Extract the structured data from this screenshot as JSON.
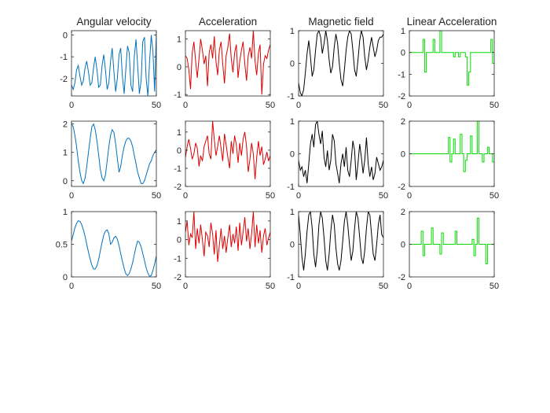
{
  "figure": {
    "rows": 3,
    "cols": 4,
    "background": "#ffffff",
    "axis_color": "#262626"
  },
  "chart_data": [
    {
      "type": "line",
      "row": 0,
      "col": 0,
      "title": "Angular velocity",
      "color": "#0072bd",
      "xlim": [
        0,
        50
      ],
      "ylim": [
        -2.8,
        0.2
      ],
      "xticks": [
        0,
        50
      ],
      "yticks": [
        0,
        -1,
        -2
      ],
      "x": [
        0,
        1,
        2,
        3,
        4,
        5,
        6,
        7,
        8,
        9,
        10,
        11,
        12,
        13,
        14,
        15,
        16,
        17,
        18,
        19,
        20,
        21,
        22,
        23,
        24,
        25,
        26,
        27,
        28,
        29,
        30,
        31,
        32,
        33,
        34,
        35,
        36,
        37,
        38,
        39,
        40,
        41,
        42,
        43,
        44,
        45,
        46,
        47,
        48,
        49,
        50
      ],
      "values": [
        -2.3,
        -2.5,
        -2.2,
        -1.6,
        -1.4,
        -1.9,
        -2.3,
        -2.1,
        -1.5,
        -1.2,
        -1.7,
        -2.3,
        -2.2,
        -1.5,
        -1.0,
        -1.6,
        -2.4,
        -2.3,
        -1.4,
        -0.9,
        -1.6,
        -2.5,
        -2.2,
        -1.2,
        -0.6,
        -1.7,
        -2.6,
        -2.0,
        -0.9,
        -0.6,
        -1.9,
        -2.7,
        -1.6,
        -0.5,
        -0.8,
        -2.3,
        -2.6,
        -1.0,
        -0.2,
        -1.4,
        -2.7,
        -2.1,
        -0.3,
        -0.1,
        -2.0,
        -2.8,
        -1.2,
        0.0,
        -0.8,
        -2.6,
        0.1
      ]
    },
    {
      "type": "line",
      "row": 0,
      "col": 1,
      "title": "Acceleration",
      "color": "#dd0000",
      "xlim": [
        0,
        50
      ],
      "ylim": [
        -1.05,
        1.3
      ],
      "xticks": [
        0,
        50
      ],
      "yticks": [
        1,
        0,
        -1
      ],
      "x": [
        0,
        1,
        2,
        3,
        4,
        5,
        6,
        7,
        8,
        9,
        10,
        11,
        12,
        13,
        14,
        15,
        16,
        17,
        18,
        19,
        20,
        21,
        22,
        23,
        24,
        25,
        26,
        27,
        28,
        29,
        30,
        31,
        32,
        33,
        34,
        35,
        36,
        37,
        38,
        39,
        40,
        41,
        42,
        43,
        44,
        45,
        46,
        47,
        48,
        49,
        50
      ],
      "values": [
        0.4,
        0.3,
        -0.1,
        -0.8,
        0.5,
        0.9,
        0.2,
        -0.4,
        0.3,
        1.0,
        0.6,
        0.1,
        0.4,
        -0.7,
        0.5,
        0.8,
        0.3,
        1.1,
        0.2,
        -0.3,
        0.6,
        0.9,
        0.1,
        -0.6,
        0.4,
        0.7,
        1.2,
        0.3,
        -0.2,
        0.5,
        0.8,
        -0.4,
        0.2,
        0.6,
        0.9,
        0.1,
        -0.5,
        0.4,
        0.7,
        0.3,
        1.3,
        0.2,
        -0.3,
        0.5,
        0.8,
        -1.0,
        0.1,
        0.4,
        0.3,
        0.6,
        0.8
      ]
    },
    {
      "type": "line",
      "row": 0,
      "col": 2,
      "title": "Magnetic field",
      "color": "#000000",
      "xlim": [
        0,
        50
      ],
      "ylim": [
        -1,
        1
      ],
      "xticks": [
        0,
        50
      ],
      "yticks": [
        1,
        0,
        -1
      ],
      "x": [
        0,
        1,
        2,
        3,
        4,
        5,
        6,
        7,
        8,
        9,
        10,
        11,
        12,
        13,
        14,
        15,
        16,
        17,
        18,
        19,
        20,
        21,
        22,
        23,
        24,
        25,
        26,
        27,
        28,
        29,
        30,
        31,
        32,
        33,
        34,
        35,
        36,
        37,
        38,
        39,
        40,
        41,
        42,
        43,
        44,
        45,
        46,
        47,
        48,
        49,
        50
      ],
      "values": [
        -0.6,
        -0.9,
        -1.0,
        -0.8,
        -0.3,
        0.3,
        0.7,
        0.2,
        -0.4,
        -0.2,
        0.4,
        0.9,
        1.0,
        0.8,
        0.3,
        0.6,
        1.0,
        0.7,
        0.1,
        -0.3,
        -0.1,
        0.5,
        0.9,
        0.6,
        0.0,
        -0.5,
        -0.7,
        -0.2,
        0.4,
        0.8,
        1.0,
        0.9,
        0.4,
        -0.2,
        -0.4,
        0.1,
        0.7,
        1.0,
        0.8,
        0.2,
        -0.2,
        0.1,
        0.5,
        0.8,
        0.5,
        0.2,
        0.4,
        0.7,
        0.8,
        0.8,
        0.9
      ]
    },
    {
      "type": "line",
      "row": 0,
      "col": 3,
      "title": "Linear Acceleration",
      "color": "#00dd00",
      "step": true,
      "xlim": [
        0,
        50
      ],
      "ylim": [
        -2,
        1
      ],
      "xticks": [
        0,
        50
      ],
      "yticks": [
        1,
        0,
        -1,
        -2
      ],
      "x": [
        0,
        1,
        2,
        3,
        4,
        5,
        6,
        7,
        8,
        9,
        10,
        11,
        12,
        13,
        14,
        15,
        16,
        17,
        18,
        19,
        20,
        21,
        22,
        23,
        24,
        25,
        26,
        27,
        28,
        29,
        30,
        31,
        32,
        33,
        34,
        35,
        36,
        37,
        38,
        39,
        40,
        41,
        42,
        43,
        44,
        45,
        46,
        47,
        48,
        49,
        50
      ],
      "values": [
        0,
        0,
        0,
        0,
        0,
        0,
        0,
        0,
        0.6,
        -0.9,
        0,
        0,
        0,
        0,
        0.6,
        0,
        0,
        0,
        1,
        0,
        0,
        0,
        0,
        0,
        0,
        0,
        -0.2,
        0,
        0,
        -0.2,
        0,
        0,
        0,
        -0.2,
        -1.5,
        -0.9,
        0,
        0,
        0,
        0,
        0,
        0,
        0,
        0,
        0,
        0,
        0,
        0,
        0.6,
        -0.5,
        0
      ]
    },
    {
      "type": "line",
      "row": 1,
      "col": 0,
      "title": "",
      "color": "#0072bd",
      "xlim": [
        0,
        50
      ],
      "ylim": [
        -0.2,
        2.1
      ],
      "xticks": [
        0,
        50
      ],
      "yticks": [
        2,
        1,
        0
      ],
      "x": [
        0,
        1,
        2,
        3,
        4,
        5,
        6,
        7,
        8,
        9,
        10,
        11,
        12,
        13,
        14,
        15,
        16,
        17,
        18,
        19,
        20,
        21,
        22,
        23,
        24,
        25,
        26,
        27,
        28,
        29,
        30,
        31,
        32,
        33,
        34,
        35,
        36,
        37,
        38,
        39,
        40,
        41,
        42,
        43,
        44,
        45,
        46,
        47,
        48,
        49,
        50
      ],
      "values": [
        2.0,
        1.9,
        1.6,
        1.2,
        0.7,
        0.3,
        0.0,
        -0.1,
        0.1,
        0.5,
        1.0,
        1.5,
        1.9,
        2.0,
        1.8,
        1.4,
        0.9,
        0.4,
        0.1,
        0.0,
        0.2,
        0.7,
        1.2,
        1.6,
        1.8,
        1.7,
        1.3,
        0.8,
        0.3,
        0.5,
        0.9,
        1.2,
        1.4,
        1.5,
        1.5,
        1.4,
        1.2,
        0.9,
        0.6,
        0.3,
        0.1,
        -0.1,
        -0.1,
        0.0,
        0.2,
        0.4,
        0.6,
        0.7,
        0.9,
        1.0,
        1.1
      ]
    },
    {
      "type": "line",
      "row": 1,
      "col": 1,
      "title": "",
      "color": "#dd0000",
      "xlim": [
        0,
        50
      ],
      "ylim": [
        -2,
        1.6
      ],
      "xticks": [
        0,
        50
      ],
      "yticks": [
        1,
        0,
        -1,
        -2
      ],
      "x": [
        0,
        1,
        2,
        3,
        4,
        5,
        6,
        7,
        8,
        9,
        10,
        11,
        12,
        13,
        14,
        15,
        16,
        17,
        18,
        19,
        20,
        21,
        22,
        23,
        24,
        25,
        26,
        27,
        28,
        29,
        30,
        31,
        32,
        33,
        34,
        35,
        36,
        37,
        38,
        39,
        40,
        41,
        42,
        43,
        44,
        45,
        46,
        47,
        48,
        49,
        50
      ],
      "values": [
        -0.4,
        0.2,
        0.6,
        0.1,
        -0.5,
        -0.2,
        0.4,
        0.1,
        -0.9,
        -0.3,
        -0.6,
        0.2,
        0.5,
        0.8,
        -0.2,
        -0.5,
        1.6,
        0.6,
        -0.3,
        0.2,
        0.8,
        0.1,
        -0.6,
        0.9,
        0.3,
        -0.4,
        -1.0,
        0.5,
        -0.2,
        0.8,
        0.3,
        -0.7,
        0.4,
        -0.3,
        0.6,
        1.0,
        0.2,
        -1.2,
        -0.5,
        0.4,
        -0.2,
        -1.6,
        -0.4,
        0.5,
        -0.3,
        0.2,
        -0.8,
        -0.5,
        -0.1,
        -0.6,
        -0.3
      ]
    },
    {
      "type": "line",
      "row": 1,
      "col": 2,
      "title": "",
      "color": "#000000",
      "xlim": [
        0,
        50
      ],
      "ylim": [
        -1,
        1
      ],
      "xticks": [
        0,
        50
      ],
      "yticks": [
        1,
        0,
        -1
      ],
      "x": [
        0,
        1,
        2,
        3,
        4,
        5,
        6,
        7,
        8,
        9,
        10,
        11,
        12,
        13,
        14,
        15,
        16,
        17,
        18,
        19,
        20,
        21,
        22,
        23,
        24,
        25,
        26,
        27,
        28,
        29,
        30,
        31,
        32,
        33,
        34,
        35,
        36,
        37,
        38,
        39,
        40,
        41,
        42,
        43,
        44,
        45,
        46,
        47,
        48,
        49,
        50
      ],
      "values": [
        -0.2,
        -0.5,
        -0.4,
        -0.7,
        -0.5,
        -0.9,
        -0.3,
        0.3,
        0.6,
        0.2,
        0.9,
        1.0,
        0.6,
        0.3,
        0.7,
        -0.1,
        -0.4,
        0.1,
        -0.5,
        -0.2,
        0.6,
        0.4,
        -0.3,
        -0.6,
        -0.9,
        -0.3,
        0.0,
        -0.4,
        0.2,
        -0.5,
        -0.7,
        -0.2,
        0.4,
        0.1,
        -0.8,
        -0.3,
        0.3,
        -0.1,
        -0.6,
        -0.2,
        0.5,
        -0.3,
        -0.7,
        -0.4,
        -0.8,
        -0.6,
        -0.1,
        -0.3,
        -0.5,
        -0.4,
        -0.2
      ]
    },
    {
      "type": "line",
      "row": 1,
      "col": 3,
      "title": "",
      "color": "#00dd00",
      "step": true,
      "xlim": [
        0,
        50
      ],
      "ylim": [
        -2,
        2
      ],
      "xticks": [
        0,
        50
      ],
      "yticks": [
        2,
        0,
        -2
      ],
      "x": [
        0,
        1,
        2,
        3,
        4,
        5,
        6,
        7,
        8,
        9,
        10,
        11,
        12,
        13,
        14,
        15,
        16,
        17,
        18,
        19,
        20,
        21,
        22,
        23,
        24,
        25,
        26,
        27,
        28,
        29,
        30,
        31,
        32,
        33,
        34,
        35,
        36,
        37,
        38,
        39,
        40,
        41,
        42,
        43,
        44,
        45,
        46,
        47,
        48,
        49,
        50
      ],
      "values": [
        0,
        0,
        0,
        0,
        0,
        0,
        0,
        0,
        0,
        0,
        0,
        0,
        0,
        0,
        0,
        0,
        0,
        0,
        0,
        0,
        0,
        0,
        0,
        1.0,
        -0.5,
        0,
        0.9,
        0,
        0,
        0,
        1.2,
        0,
        -1.1,
        -0.4,
        0,
        0,
        1.1,
        0,
        0,
        0,
        2,
        0,
        0,
        -0.5,
        0,
        0,
        0.4,
        0,
        0,
        -0.5,
        0
      ]
    },
    {
      "type": "line",
      "row": 2,
      "col": 0,
      "title": "",
      "color": "#0072bd",
      "xlim": [
        0,
        50
      ],
      "ylim": [
        0,
        1
      ],
      "xticks": [
        0,
        50
      ],
      "yticks": [
        1,
        0.5,
        0
      ],
      "x": [
        0,
        1,
        2,
        3,
        4,
        5,
        6,
        7,
        8,
        9,
        10,
        11,
        12,
        13,
        14,
        15,
        16,
        17,
        18,
        19,
        20,
        21,
        22,
        23,
        24,
        25,
        26,
        27,
        28,
        29,
        30,
        31,
        32,
        33,
        34,
        35,
        36,
        37,
        38,
        39,
        40,
        41,
        42,
        43,
        44,
        45,
        46,
        47,
        48,
        49,
        50
      ],
      "values": [
        0.55,
        0.65,
        0.75,
        0.82,
        0.86,
        0.85,
        0.8,
        0.72,
        0.62,
        0.5,
        0.38,
        0.27,
        0.18,
        0.12,
        0.12,
        0.17,
        0.27,
        0.4,
        0.53,
        0.64,
        0.7,
        0.72,
        0.66,
        0.5,
        0.53,
        0.6,
        0.62,
        0.58,
        0.48,
        0.36,
        0.24,
        0.13,
        0.05,
        0.02,
        0.05,
        0.12,
        0.22,
        0.34,
        0.46,
        0.55,
        0.53,
        0.46,
        0.36,
        0.25,
        0.14,
        0.06,
        0.01,
        0.02,
        0.1,
        0.2,
        0.32
      ]
    },
    {
      "type": "line",
      "row": 2,
      "col": 1,
      "title": "",
      "color": "#dd0000",
      "xlim": [
        0,
        50
      ],
      "ylim": [
        -2,
        1.5
      ],
      "xticks": [
        0,
        50
      ],
      "yticks": [
        1,
        0,
        -1,
        -2
      ],
      "x": [
        0,
        1,
        2,
        3,
        4,
        5,
        6,
        7,
        8,
        9,
        10,
        11,
        12,
        13,
        14,
        15,
        16,
        17,
        18,
        19,
        20,
        21,
        22,
        23,
        24,
        25,
        26,
        27,
        28,
        29,
        30,
        31,
        32,
        33,
        34,
        35,
        36,
        37,
        38,
        39,
        40,
        41,
        42,
        43,
        44,
        45,
        46,
        47,
        48,
        49,
        50
      ],
      "values": [
        0.4,
        1.0,
        -0.3,
        0.3,
        0.1,
        1.5,
        -0.5,
        0.6,
        -0.2,
        0.8,
        0.0,
        -0.9,
        0.4,
        0.2,
        -0.4,
        0.9,
        0.3,
        -0.8,
        0.5,
        -1.2,
        -0.3,
        0.6,
        -0.5,
        0.2,
        -0.7,
        0.1,
        0.8,
        -0.4,
        0.3,
        -0.2,
        0.7,
        -0.6,
        0.9,
        -0.3,
        0.4,
        1.2,
        -0.1,
        0.6,
        -0.5,
        0.3,
        1.5,
        -0.4,
        0.8,
        -0.2,
        0.5,
        -0.7,
        0.2,
        0.6,
        -0.3,
        0.1,
        0.4
      ]
    },
    {
      "type": "line",
      "row": 2,
      "col": 2,
      "title": "",
      "color": "#000000",
      "xlim": [
        0,
        50
      ],
      "ylim": [
        -1,
        1
      ],
      "xticks": [
        0,
        50
      ],
      "yticks": [
        1,
        0,
        -1
      ],
      "x": [
        0,
        1,
        2,
        3,
        4,
        5,
        6,
        7,
        8,
        9,
        10,
        11,
        12,
        13,
        14,
        15,
        16,
        17,
        18,
        19,
        20,
        21,
        22,
        23,
        24,
        25,
        26,
        27,
        28,
        29,
        30,
        31,
        32,
        33,
        34,
        35,
        36,
        37,
        38,
        39,
        40,
        41,
        42,
        43,
        44,
        45,
        46,
        47,
        48,
        49,
        50
      ],
      "values": [
        0.9,
        0.3,
        -0.4,
        -0.8,
        -0.3,
        0.4,
        0.9,
        1.0,
        0.5,
        -0.3,
        -0.7,
        -0.2,
        0.6,
        1.0,
        0.8,
        0.2,
        -0.5,
        -0.8,
        -0.3,
        0.4,
        0.9,
        0.6,
        -0.1,
        -0.6,
        -0.8,
        -0.5,
        0.1,
        0.7,
        1.0,
        0.6,
        0.0,
        -0.5,
        -0.2,
        0.5,
        1.0,
        0.8,
        0.2,
        -0.4,
        -0.6,
        -0.2,
        0.5,
        1.0,
        0.9,
        0.3,
        -0.3,
        -0.5,
        0.0,
        0.6,
        0.9,
        0.3,
        0.2
      ]
    },
    {
      "type": "line",
      "row": 2,
      "col": 3,
      "title": "",
      "color": "#00dd00",
      "step": true,
      "xlim": [
        0,
        50
      ],
      "ylim": [
        -2,
        2
      ],
      "xticks": [
        0,
        50
      ],
      "yticks": [
        2,
        0,
        -2
      ],
      "x": [
        0,
        1,
        2,
        3,
        4,
        5,
        6,
        7,
        8,
        9,
        10,
        11,
        12,
        13,
        14,
        15,
        16,
        17,
        18,
        19,
        20,
        21,
        22,
        23,
        24,
        25,
        26,
        27,
        28,
        29,
        30,
        31,
        32,
        33,
        34,
        35,
        36,
        37,
        38,
        39,
        40,
        41,
        42,
        43,
        44,
        45,
        46,
        47,
        48,
        49,
        50
      ],
      "values": [
        0,
        0,
        0,
        0,
        0,
        0,
        0,
        0.8,
        -0.7,
        0,
        0,
        0,
        0,
        1.0,
        0,
        0,
        0,
        0,
        -0.6,
        0.7,
        0,
        0,
        0,
        0,
        0,
        0,
        0,
        0.8,
        0,
        0,
        0,
        0,
        0,
        0,
        0,
        0,
        0,
        0.3,
        -0.7,
        0,
        1.6,
        0,
        0,
        0,
        0,
        -1.2,
        0,
        0,
        0,
        0,
        0
      ]
    }
  ]
}
